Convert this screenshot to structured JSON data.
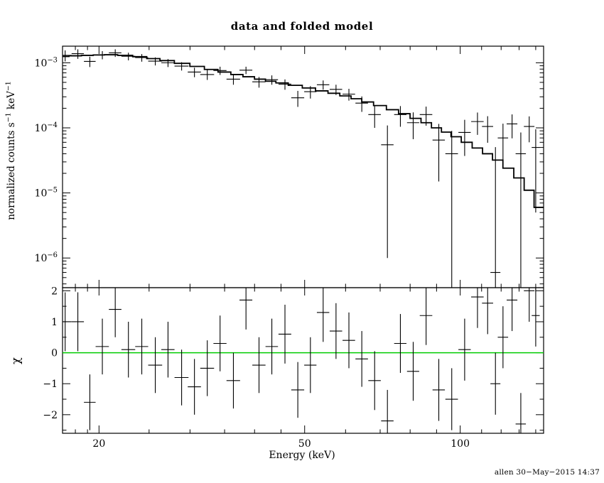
{
  "footer": "allen 30−May−2015 14:37",
  "chart_data": [
    {
      "name": "spectrum",
      "type": "scatter",
      "title": "data and folded model",
      "xlabel": "",
      "ylabel": "normalized counts s^{−1} keV^{−1}",
      "xscale": "log",
      "yscale": "log",
      "xlim": [
        17,
        145
      ],
      "ylim": [
        3.5e-07,
        0.0018
      ],
      "grid": false,
      "xticks": [
        {
          "v": 20,
          "label": "20"
        },
        {
          "v": 50,
          "label": "50"
        },
        {
          "v": 100,
          "label": "100"
        }
      ],
      "x_minor_ticks": [
        18,
        19,
        25,
        30,
        35,
        40,
        45,
        60,
        70,
        80,
        90,
        110,
        120,
        130,
        140
      ],
      "yticks": [
        {
          "v": 0.001,
          "label": "10^{−3}"
        },
        {
          "v": 0.0001,
          "label": "10^{−4}"
        },
        {
          "v": 1e-05,
          "label": "10^{−5}"
        },
        {
          "v": 1e-06,
          "label": "10^{−6}"
        }
      ],
      "series": [
        {
          "name": "data",
          "style": "errorbar-cross",
          "color": "#000000",
          "points_format": [
            "energy_keV",
            "half_bin_width_keV",
            "rate",
            "rate_error"
          ],
          "points": [
            [
              17.2,
              0.5,
              0.0013,
              0.00025
            ],
            [
              18.2,
              0.5,
              0.00138,
              0.00023
            ],
            [
              19.2,
              0.5,
              0.00105,
              0.00019
            ],
            [
              20.3,
              0.6,
              0.00132,
              0.00019
            ],
            [
              21.5,
              0.6,
              0.00142,
              0.00019
            ],
            [
              22.8,
              0.7,
              0.00126,
              0.00017
            ],
            [
              24.2,
              0.7,
              0.0012,
              0.00016
            ],
            [
              25.7,
              0.8,
              0.00106,
              0.00015
            ],
            [
              27.2,
              0.8,
              0.001,
              0.00014
            ],
            [
              28.9,
              0.9,
              0.00089,
              0.00013
            ],
            [
              30.6,
              0.9,
              0.00072,
              0.00012
            ],
            [
              32.4,
              1.0,
              0.00066,
              0.000115
            ],
            [
              34.3,
              1.0,
              0.00076,
              0.00011
            ],
            [
              36.4,
              1.1,
              0.00056,
              0.0001
            ],
            [
              38.5,
              1.1,
              0.00077,
              0.0001
            ],
            [
              40.8,
              1.2,
              0.00051,
              9.5e-05
            ],
            [
              43.2,
              1.2,
              0.00055,
              9e-05
            ],
            [
              45.8,
              1.3,
              0.00047,
              8.5e-05
            ],
            [
              48.5,
              1.4,
              0.00029,
              8e-05
            ],
            [
              51.3,
              1.4,
              0.00036,
              7.8e-05
            ],
            [
              54.3,
              1.5,
              0.00046,
              7.5e-05
            ],
            [
              57.5,
              1.6,
              0.00039,
              7e-05
            ],
            [
              60.9,
              1.7,
              0.00033,
              6.8e-05
            ],
            [
              64.5,
              1.8,
              0.00024,
              6.4e-05
            ],
            [
              68.3,
              1.9,
              0.00016,
              6e-05
            ],
            [
              72.3,
              2.0,
              5.5e-05,
              5.4e-05
            ],
            [
              76.6,
              2.1,
              0.00016,
              5.6e-05
            ],
            [
              81.1,
              2.2,
              0.00012,
              5.3e-05
            ],
            [
              85.9,
              2.4,
              0.00016,
              5.2e-05
            ],
            [
              90.9,
              2.5,
              6.5e-05,
              5e-05
            ],
            [
              96.3,
              2.7,
              4e-05,
              5e-05
            ],
            [
              102,
              2.8,
              8.5e-05,
              4.8e-05
            ],
            [
              108,
              3.0,
              0.000125,
              4.7e-05
            ],
            [
              113,
              2.8,
              0.000105,
              4.6e-05
            ],
            [
              117,
              2.6,
              6e-07,
              5e-05
            ],
            [
              121,
              2.8,
              7e-05,
              4.6e-05
            ],
            [
              126,
              3.0,
              0.000115,
              4.6e-05
            ],
            [
              131,
              3.0,
              4e-05,
              4.5e-05
            ],
            [
              136,
              3.2,
              0.000105,
              4.5e-05
            ],
            [
              140,
              2.5,
              5e-05,
              4.5e-05
            ]
          ]
        },
        {
          "name": "folded model",
          "style": "step-line",
          "color": "#000000",
          "x": [
            17,
            18,
            19,
            20,
            21,
            22.5,
            24,
            25.5,
            27,
            29,
            31,
            33,
            35,
            37,
            39,
            41,
            43,
            45,
            48,
            51,
            54,
            57,
            60,
            63,
            66,
            70,
            74,
            78,
            82,
            86,
            90,
            94,
            98,
            103,
            108,
            113,
            118,
            124,
            130,
            136,
            142
          ],
          "y": [
            0.00125,
            0.00128,
            0.0013,
            0.00132,
            0.00133,
            0.0013,
            0.00124,
            0.00116,
            0.00108,
            0.00098,
            0.00088,
            0.00079,
            0.00072,
            0.00066,
            0.00061,
            0.00056,
            0.00052,
            0.00049,
            0.00045,
            0.00041,
            0.00037,
            0.00034,
            0.00031,
            0.00028,
            0.00025,
            0.00022,
            0.00019,
            0.000165,
            0.00014,
            0.00012,
            0.0001,
            8.6e-05,
            7.3e-05,
            6e-05,
            4.9e-05,
            4e-05,
            3.2e-05,
            2.4e-05,
            1.7e-05,
            1.1e-05,
            6e-06
          ]
        }
      ]
    },
    {
      "name": "residuals",
      "type": "scatter",
      "title": "",
      "xlabel": "Energy (keV)",
      "ylabel": "χ",
      "xscale": "log",
      "yscale": "linear",
      "xlim": [
        17,
        145
      ],
      "ylim": [
        -2.6,
        2.1
      ],
      "grid": false,
      "xticks": [
        {
          "v": 20,
          "label": "20"
        },
        {
          "v": 50,
          "label": "50"
        },
        {
          "v": 100,
          "label": "100"
        }
      ],
      "x_minor_ticks": [
        18,
        19,
        25,
        30,
        35,
        40,
        45,
        60,
        70,
        80,
        90,
        110,
        120,
        130,
        140
      ],
      "yticks": [
        {
          "v": -2,
          "label": "−2"
        },
        {
          "v": -1,
          "label": "−1"
        },
        {
          "v": 0,
          "label": "0"
        },
        {
          "v": 1,
          "label": "1"
        },
        {
          "v": 2,
          "label": "2"
        }
      ],
      "y_minor_ticks": [
        -2.5,
        -1.5,
        -0.5,
        0.5,
        1.5
      ],
      "zero_line": {
        "y": 0,
        "color": "#00cc00"
      },
      "series": [
        {
          "name": "chi residuals",
          "style": "errorbar-cross",
          "color": "#000000",
          "points_format": [
            "energy_keV",
            "half_bin_width_keV",
            "chi",
            "chi_error"
          ],
          "points": [
            [
              17.2,
              0.5,
              1.0,
              0.95
            ],
            [
              18.2,
              0.5,
              1.0,
              0.95
            ],
            [
              19.2,
              0.5,
              -1.6,
              0.9
            ],
            [
              20.3,
              0.6,
              0.2,
              0.9
            ],
            [
              21.5,
              0.6,
              1.4,
              0.9
            ],
            [
              22.8,
              0.7,
              0.1,
              0.9
            ],
            [
              24.2,
              0.7,
              0.2,
              0.9
            ],
            [
              25.7,
              0.8,
              -0.4,
              0.9
            ],
            [
              27.2,
              0.8,
              0.1,
              0.9
            ],
            [
              28.9,
              0.9,
              -0.8,
              0.9
            ],
            [
              30.6,
              0.9,
              -1.1,
              0.9
            ],
            [
              32.4,
              1.0,
              -0.5,
              0.9
            ],
            [
              34.3,
              1.0,
              0.3,
              0.9
            ],
            [
              36.4,
              1.1,
              -0.9,
              0.9
            ],
            [
              38.5,
              1.1,
              1.7,
              0.95
            ],
            [
              40.8,
              1.2,
              -0.4,
              0.9
            ],
            [
              43.2,
              1.2,
              0.2,
              0.9
            ],
            [
              45.8,
              1.3,
              0.6,
              0.95
            ],
            [
              48.5,
              1.4,
              -1.2,
              0.9
            ],
            [
              51.3,
              1.4,
              -0.4,
              0.9
            ],
            [
              54.3,
              1.5,
              1.3,
              0.95
            ],
            [
              57.5,
              1.6,
              0.7,
              0.9
            ],
            [
              60.9,
              1.7,
              0.4,
              0.9
            ],
            [
              64.5,
              1.8,
              -0.2,
              0.9
            ],
            [
              68.3,
              1.9,
              -0.9,
              0.95
            ],
            [
              72.3,
              2.0,
              -2.2,
              1.0
            ],
            [
              76.6,
              2.1,
              0.3,
              0.95
            ],
            [
              81.1,
              2.2,
              -0.6,
              0.95
            ],
            [
              85.9,
              2.4,
              1.2,
              0.95
            ],
            [
              90.9,
              2.5,
              -1.2,
              1.0
            ],
            [
              96.3,
              2.7,
              -1.5,
              1.0
            ],
            [
              102,
              2.8,
              0.1,
              1.0
            ],
            [
              108,
              3.0,
              1.8,
              1.0
            ],
            [
              113,
              2.8,
              1.6,
              1.0
            ],
            [
              117,
              2.6,
              -1.0,
              1.0
            ],
            [
              121,
              2.8,
              0.5,
              1.0
            ],
            [
              126,
              3.0,
              1.7,
              1.0
            ],
            [
              131,
              3.0,
              -2.3,
              1.0
            ],
            [
              136,
              3.2,
              2.0,
              1.0
            ],
            [
              140,
              2.5,
              1.2,
              1.0
            ]
          ]
        }
      ]
    }
  ]
}
